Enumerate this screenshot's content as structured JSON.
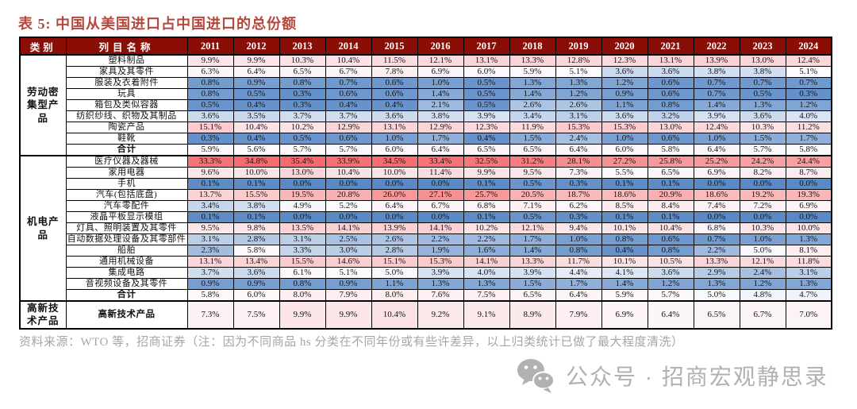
{
  "title": "表 5: 中国从美国进口占中国进口的总份额",
  "table": {
    "header": {
      "category": "类别",
      "item": "列目名称"
    },
    "years": [
      "2011",
      "2012",
      "2013",
      "2014",
      "2015",
      "2016",
      "2017",
      "2018",
      "2019",
      "2020",
      "2021",
      "2022",
      "2023",
      "2024"
    ],
    "groups": [
      {
        "category": "劳动密集型产品",
        "rows": [
          {
            "label": "塑料制品",
            "bold": false,
            "values": [
              "9.9%",
              "9.9%",
              "10.3%",
              "10.4%",
              "11.5%",
              "12.1%",
              "13.1%",
              "13.3%",
              "12.8%",
              "12.3%",
              "13.1%",
              "13.9%",
              "13.0%",
              "12.4%"
            ]
          },
          {
            "label": "家具及其零件",
            "bold": false,
            "values": [
              "6.3%",
              "6.4%",
              "6.5%",
              "6.7%",
              "7.8%",
              "6.9%",
              "6.0%",
              "5.9%",
              "5.1%",
              "3.6%",
              "3.6%",
              "3.8%",
              "3.8%",
              "5.1%"
            ]
          },
          {
            "label": "服装及衣着附件",
            "bold": false,
            "values": [
              "0.8%",
              "0.9%",
              "0.8%",
              "0.7%",
              "0.6%",
              "1.0%",
              "0.5%",
              "1.3%",
              "1.3%",
              "1.2%",
              "0.6%",
              "0.7%",
              "0.7%",
              "0.7%"
            ]
          },
          {
            "label": "玩具",
            "bold": false,
            "values": [
              "0.8%",
              "0.5%",
              "0.3%",
              "0.6%",
              "0.6%",
              "1.4%",
              "0.5%",
              "1.4%",
              "1.2%",
              "0.9%",
              "0.6%",
              "0.7%",
              "0.5%",
              "0.3%"
            ]
          },
          {
            "label": "箱包及类似容器",
            "bold": false,
            "values": [
              "0.5%",
              "0.4%",
              "0.3%",
              "0.4%",
              "0.4%",
              "2.1%",
              "0.5%",
              "2.6%",
              "2.6%",
              "1.1%",
              "0.8%",
              "1.4%",
              "1.3%",
              "1.2%"
            ]
          },
          {
            "label": "纺织纱线、织物及其制品",
            "bold": false,
            "values": [
              "3.6%",
              "3.5%",
              "3.7%",
              "3.7%",
              "3.6%",
              "3.8%",
              "3.9%",
              "3.4%",
              "3.1%",
              "3.6%",
              "3.2%",
              "3.9%",
              "3.6%",
              "4.0%"
            ]
          },
          {
            "label": "陶瓷产品",
            "bold": false,
            "values": [
              "15.1%",
              "10.4%",
              "10.2%",
              "12.9%",
              "13.1%",
              "12.9%",
              "12.3%",
              "11.9%",
              "15.3%",
              "15.3%",
              "13.0%",
              "12.4%",
              "10.3%",
              "11.2%"
            ]
          },
          {
            "label": "鞋靴",
            "bold": false,
            "values": [
              "0.3%",
              "0.4%",
              "0.5%",
              "0.6%",
              "1.0%",
              "1.7%",
              "0.4%",
              "1.5%",
              "2.4%",
              "1.0%",
              "0.6%",
              "1.0%",
              "1.5%",
              "1.7%"
            ]
          },
          {
            "label": "合计",
            "bold": true,
            "values": [
              "5.9%",
              "5.6%",
              "5.7%",
              "5.7%",
              "6.0%",
              "6.4%",
              "6.5%",
              "6.5%",
              "6.4%",
              "6.0%",
              "5.8%",
              "6.4%",
              "5.7%",
              "5.8%"
            ]
          }
        ]
      },
      {
        "category": "机电产品",
        "rows": [
          {
            "label": "医疗仪器及器械",
            "bold": false,
            "values": [
              "33.3%",
              "34.8%",
              "35.4%",
              "33.9%",
              "34.5%",
              "33.4%",
              "32.5%",
              "31.2%",
              "28.1%",
              "27.2%",
              "25.8%",
              "25.2%",
              "24.2%",
              "24.4%"
            ]
          },
          {
            "label": "家用电器",
            "bold": false,
            "values": [
              "9.6%",
              "10.0%",
              "13.0%",
              "10.4%",
              "10.0%",
              "11.4%",
              "9.9%",
              "9.5%",
              "7.3%",
              "5.5%",
              "6.5%",
              "6.9%",
              "8.2%",
              "8.7%"
            ]
          },
          {
            "label": "手机",
            "bold": false,
            "values": [
              "0.1%",
              "0.1%",
              "0.0%",
              "0.0%",
              "0.0%",
              "0.0%",
              "0.1%",
              "0.5%",
              "0.3%",
              "0.1%",
              "0.1%",
              "0.0%",
              "0.0%",
              "0.0%"
            ]
          },
          {
            "label": "汽车(包括底盘)",
            "bold": false,
            "values": [
              "13.7%",
              "15.5%",
              "19.5%",
              "20.8%",
              "26.0%",
              "27.1%",
              "25.7%",
              "20.5%",
              "18.7%",
              "18.6%",
              "20.9%",
              "18.6%",
              "19.2%",
              "19.3%"
            ]
          },
          {
            "label": "汽车零配件",
            "bold": false,
            "values": [
              "3.4%",
              "3.8%",
              "4.9%",
              "5.2%",
              "6.4%",
              "6.7%",
              "6.8%",
              "7.1%",
              "6.2%",
              "8.5%",
              "8.4%",
              "7.4%",
              "7.2%",
              "6.9%"
            ]
          },
          {
            "label": "液晶平板显示模组",
            "bold": false,
            "values": [
              "0.1%",
              "0.1%",
              "0.0%",
              "0.0%",
              "0.0%",
              "0.0%",
              "0.1%",
              "0.5%",
              "0.3%",
              "0.1%",
              "0.1%",
              "0.0%",
              "0.0%",
              "0.0%"
            ]
          },
          {
            "label": "灯具、照明装置及其零件",
            "bold": false,
            "values": [
              "9.5%",
              "9.8%",
              "13.5%",
              "14.1%",
              "13.9%",
              "14.1%",
              "10.2%",
              "12.1%",
              "9.4%",
              "10.1%",
              "10.4%",
              "6.8%",
              "10.3%",
              "10.0%"
            ]
          },
          {
            "label": "自动数据处理设备及其零部件",
            "bold": false,
            "values": [
              "3.1%",
              "2.8%",
              "3.1%",
              "2.5%",
              "2.6%",
              "2.2%",
              "2.2%",
              "1.7%",
              "1.0%",
              "0.8%",
              "0.6%",
              "0.7%",
              "1.0%",
              "1.3%"
            ]
          },
          {
            "label": "船舶",
            "bold": false,
            "values": [
              "2.3%",
              "5.8%",
              "3.3%",
              "3.0%",
              "2.8%",
              "1.9%",
              "1.6%",
              "1.4%",
              "0.8%",
              "0.4%",
              "0.8%",
              "2.2%",
              "5.0%",
              "8.1%"
            ]
          },
          {
            "label": "通用机械设备",
            "bold": false,
            "values": [
              "13.1%",
              "13.4%",
              "15.5%",
              "14.6%",
              "15.1%",
              "15.3%",
              "14.1%",
              "13.3%",
              "11.7%",
              "10.1%",
              "10.5%",
              "13.3%",
              "12.1%",
              "11.8%"
            ]
          },
          {
            "label": "集成电路",
            "bold": false,
            "values": [
              "3.7%",
              "3.6%",
              "6.1%",
              "5.1%",
              "5.0%",
              "3.9%",
              "4.0%",
              "3.9%",
              "4.4%",
              "4.1%",
              "3.6%",
              "2.9%",
              "2.4%",
              "3.1%"
            ]
          },
          {
            "label": "音视频设备及其零件",
            "bold": false,
            "values": [
              "0.9%",
              "0.9%",
              "0.8%",
              "0.9%",
              "1.1%",
              "1.3%",
              "1.3%",
              "1.5%",
              "1.7%",
              "1.4%",
              "1.2%",
              "1.3%",
              "1.2%",
              "1.3%"
            ]
          },
          {
            "label": "合计",
            "bold": true,
            "values": [
              "5.8%",
              "6.0%",
              "8.0%",
              "7.9%",
              "8.0%",
              "7.6%",
              "7.5%",
              "6.5%",
              "6.4%",
              "5.9%",
              "5.7%",
              "5.0%",
              "4.8%",
              "4.7%"
            ]
          }
        ]
      },
      {
        "category": "高新技术产品",
        "rows": [
          {
            "label": "高新技术产品",
            "bold": true,
            "values": [
              "7.3%",
              "7.5%",
              "9.9%",
              "9.9%",
              "10.4%",
              "9.2%",
              "9.1%",
              "8.9%",
              "7.9%",
              "6.9%",
              "6.4%",
              "6.5%",
              "6.7%",
              "7.0%"
            ]
          }
        ]
      }
    ]
  },
  "heatmap": {
    "low_color": "#5A8AC6",
    "mid_color": "#FCFCFF",
    "high_color": "#F8696B",
    "min_value": 0.0,
    "mid_value": 5.1,
    "max_value": 35.4
  },
  "colors": {
    "header_bg": "#8B0E06",
    "title_text": "#B7463C",
    "note_text": "#A6A6A6",
    "watermark": "#B1B1B1"
  },
  "source_note": "资料来源：WTO 等，招商证券（注：因为不同商品 hs 分类在不同年份或有些许差异，以上归类统计已做了最大程度清洗）",
  "watermark": {
    "icon": "wechat-icon",
    "text": "公众号 · 招商宏观静思录"
  }
}
